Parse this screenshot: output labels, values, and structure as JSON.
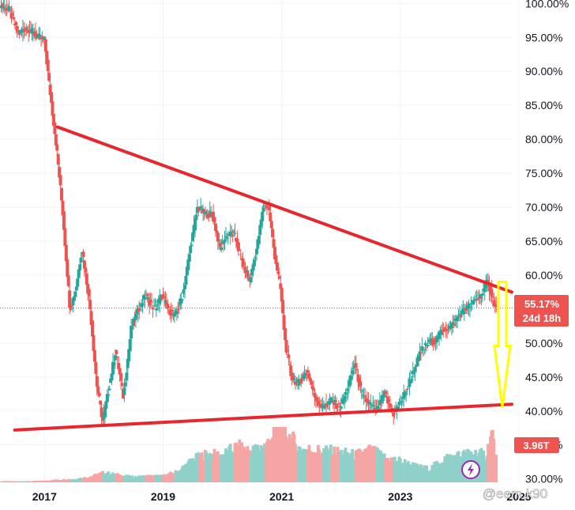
{
  "chart_data": {
    "type": "candlestick",
    "title": "",
    "y_axis": {
      "side": "right",
      "range_pct": [
        29.5,
        100.5
      ],
      "ticks": [
        "100.00%",
        "95.00%",
        "90.00%",
        "85.00%",
        "80.00%",
        "75.00%",
        "70.00%",
        "65.00%",
        "60.00%",
        "55.00%",
        "50.00%",
        "45.00%",
        "40.00%",
        "35.00%",
        "30.00%"
      ],
      "tick_values": [
        100,
        95,
        90,
        85,
        80,
        75,
        70,
        65,
        60,
        55,
        50,
        45,
        40,
        35,
        30
      ]
    },
    "x_axis": {
      "range": [
        2016.25,
        2024.88
      ],
      "tick_labels": [
        "2017",
        "2019",
        "2021",
        "2023",
        "2025"
      ],
      "tick_values": [
        2017,
        2019,
        2021,
        2023,
        2025
      ]
    },
    "grid": true,
    "colors": {
      "up": "#26a69a",
      "down": "#ef5350",
      "volume_up": "#8fd1c9",
      "volume_down": "#f5a5a4",
      "trendline": "#e8262e",
      "arrow": "#ffff00"
    },
    "price_series": [
      [
        2016.27,
        99.7
      ],
      [
        2016.42,
        99.1
      ],
      [
        2016.58,
        95.5
      ],
      [
        2016.72,
        96.5
      ],
      [
        2016.88,
        95.2
      ],
      [
        2017.02,
        94.5
      ],
      [
        2017.1,
        88
      ],
      [
        2017.22,
        79
      ],
      [
        2017.32,
        70
      ],
      [
        2017.45,
        55
      ],
      [
        2017.55,
        58
      ],
      [
        2017.65,
        64
      ],
      [
        2017.78,
        56
      ],
      [
        2017.9,
        44
      ],
      [
        2018.0,
        38.5
      ],
      [
        2018.1,
        43
      ],
      [
        2018.22,
        49
      ],
      [
        2018.35,
        42
      ],
      [
        2018.48,
        52
      ],
      [
        2018.6,
        55
      ],
      [
        2018.72,
        57
      ],
      [
        2018.88,
        55
      ],
      [
        2019.0,
        57
      ],
      [
        2019.1,
        55
      ],
      [
        2019.22,
        54
      ],
      [
        2019.35,
        57
      ],
      [
        2019.48,
        64
      ],
      [
        2019.6,
        70
      ],
      [
        2019.72,
        69
      ],
      [
        2019.85,
        69
      ],
      [
        2019.98,
        64
      ],
      [
        2020.1,
        66
      ],
      [
        2020.22,
        66
      ],
      [
        2020.35,
        62
      ],
      [
        2020.48,
        59
      ],
      [
        2020.6,
        64
      ],
      [
        2020.72,
        70.5
      ],
      [
        2020.8,
        70
      ],
      [
        2020.9,
        63
      ],
      [
        2021.0,
        58
      ],
      [
        2021.08,
        50
      ],
      [
        2021.18,
        45
      ],
      [
        2021.3,
        44
      ],
      [
        2021.45,
        46
      ],
      [
        2021.58,
        42
      ],
      [
        2021.7,
        40.5
      ],
      [
        2021.85,
        41.5
      ],
      [
        2022.0,
        40.5
      ],
      [
        2022.12,
        43
      ],
      [
        2022.25,
        47
      ],
      [
        2022.38,
        42
      ],
      [
        2022.5,
        41
      ],
      [
        2022.62,
        40
      ],
      [
        2022.75,
        42.5
      ],
      [
        2022.9,
        39.5
      ],
      [
        2023.0,
        41
      ],
      [
        2023.12,
        43
      ],
      [
        2023.25,
        46
      ],
      [
        2023.38,
        49
      ],
      [
        2023.5,
        50
      ],
      [
        2023.62,
        50.5
      ],
      [
        2023.75,
        52
      ],
      [
        2023.88,
        52.5
      ],
      [
        2024.0,
        54
      ],
      [
        2024.12,
        55
      ],
      [
        2024.25,
        56
      ],
      [
        2024.38,
        57
      ],
      [
        2024.48,
        59
      ],
      [
        2024.55,
        57.5
      ],
      [
        2024.62,
        55.17
      ]
    ],
    "volume_scale_max": 1.0,
    "volume_series": [
      [
        2016.27,
        0.02
      ],
      [
        2016.5,
        0.02
      ],
      [
        2016.75,
        0.02
      ],
      [
        2017.0,
        0.03
      ],
      [
        2017.25,
        0.05
      ],
      [
        2017.5,
        0.06
      ],
      [
        2017.75,
        0.1
      ],
      [
        2018.0,
        0.18
      ],
      [
        2018.25,
        0.14
      ],
      [
        2018.5,
        0.1
      ],
      [
        2018.75,
        0.12
      ],
      [
        2019.0,
        0.12
      ],
      [
        2019.25,
        0.2
      ],
      [
        2019.5,
        0.42
      ],
      [
        2019.75,
        0.52
      ],
      [
        2020.0,
        0.5
      ],
      [
        2020.25,
        0.66
      ],
      [
        2020.5,
        0.58
      ],
      [
        2020.75,
        0.7
      ],
      [
        2020.9,
        1.0
      ],
      [
        2021.1,
        0.9
      ],
      [
        2021.3,
        0.62
      ],
      [
        2021.5,
        0.6
      ],
      [
        2021.75,
        0.58
      ],
      [
        2022.0,
        0.55
      ],
      [
        2022.25,
        0.5
      ],
      [
        2022.5,
        0.6
      ],
      [
        2022.75,
        0.45
      ],
      [
        2023.0,
        0.4
      ],
      [
        2023.25,
        0.3
      ],
      [
        2023.5,
        0.25
      ],
      [
        2023.75,
        0.45
      ],
      [
        2024.0,
        0.5
      ],
      [
        2024.25,
        0.55
      ],
      [
        2024.45,
        0.5
      ],
      [
        2024.55,
        0.95
      ],
      [
        2024.62,
        0.4
      ]
    ],
    "trendlines": [
      {
        "name": "",
        "from": [
          2017.22,
          81.8
        ],
        "to": [
          2024.88,
          57.5
        ]
      },
      {
        "name": "",
        "from": [
          2016.5,
          37.2
        ],
        "to": [
          2024.88,
          41.0
        ]
      }
    ],
    "arrow": {
      "x": 2024.72,
      "from": 59.0,
      "to": 40.5
    },
    "last_price": {
      "value": 55.17,
      "label": "55.17%",
      "countdown": "24d 18h"
    },
    "volume_label": "3.96T",
    "watermark": "@eem.k90"
  }
}
